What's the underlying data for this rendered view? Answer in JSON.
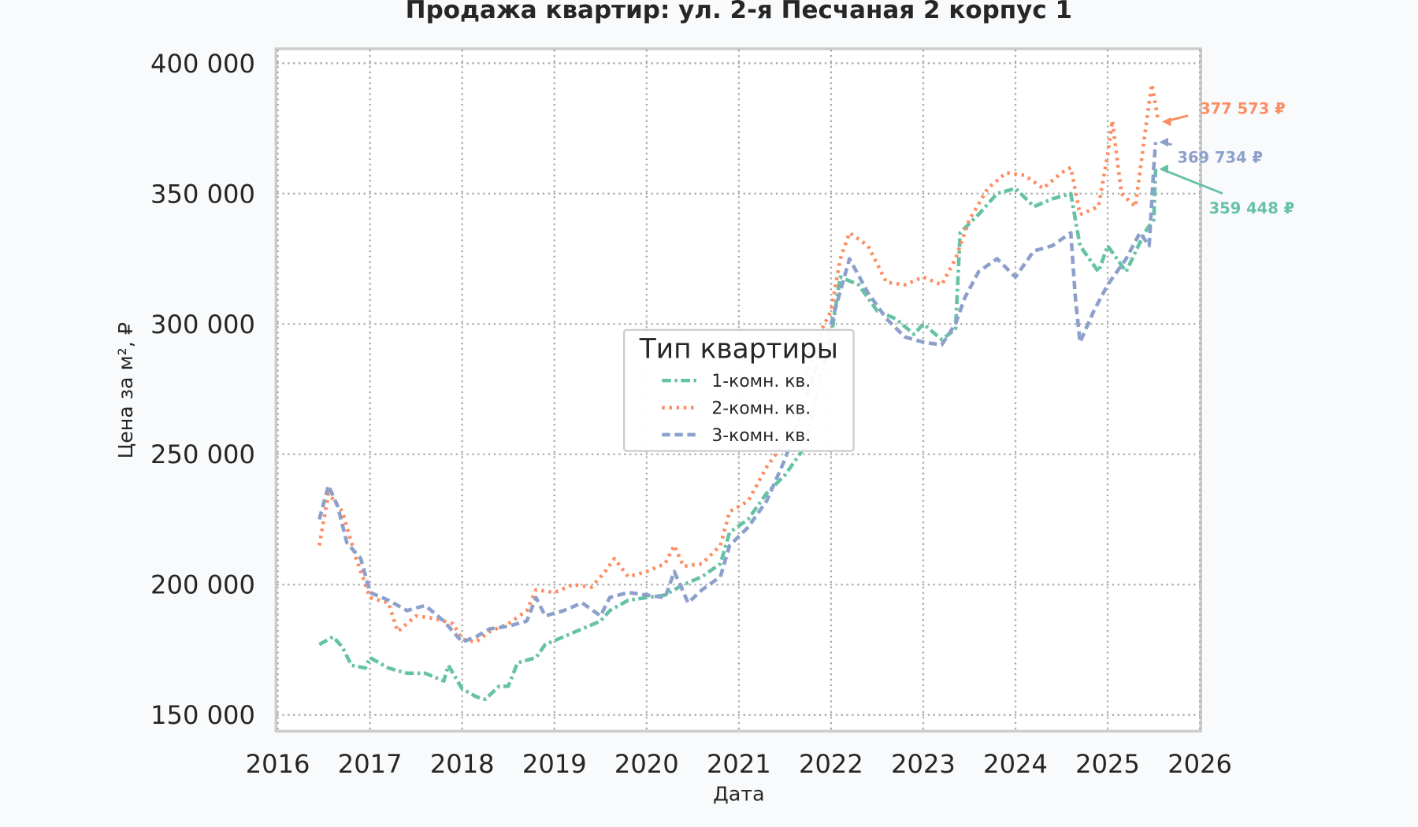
{
  "chart_data": {
    "type": "line",
    "title": "Продажа квартир: ул. 2-я Песчаная 2 корпус 1",
    "xlabel": "Дата",
    "ylabel": "Цена за м², ₽",
    "xlim": [
      2016,
      2026
    ],
    "ylim": [
      145000,
      402000
    ],
    "x_ticks": [
      "2016",
      "2017",
      "2018",
      "2019",
      "2020",
      "2021",
      "2022",
      "2023",
      "2024",
      "2025",
      "2026"
    ],
    "y_ticks": [
      {
        "value": 150000,
        "label": "150 000"
      },
      {
        "value": 200000,
        "label": "200 000"
      },
      {
        "value": 250000,
        "label": "250 000"
      },
      {
        "value": 300000,
        "label": "300 000"
      },
      {
        "value": 350000,
        "label": "350 000"
      },
      {
        "value": 400000,
        "label": "400 000"
      }
    ],
    "grid": true,
    "legend": {
      "title": "Тип квартиры",
      "placement": "center"
    },
    "series": [
      {
        "name": "1-комн. кв.",
        "color": "#66c2a5",
        "style": "dash-dot",
        "last_label": "359 448 ₽",
        "x": [
          2016.45,
          2016.6,
          2016.7,
          2016.8,
          2016.95,
          2017.0,
          2017.2,
          2017.4,
          2017.6,
          2017.8,
          2017.85,
          2018.0,
          2018.15,
          2018.25,
          2018.4,
          2018.5,
          2018.6,
          2018.8,
          2018.9,
          2019.1,
          2019.3,
          2019.5,
          2019.6,
          2019.8,
          2020.0,
          2020.2,
          2020.4,
          2020.6,
          2020.8,
          2020.9,
          2021.1,
          2021.3,
          2021.5,
          2021.7,
          2022.0,
          2022.1,
          2022.3,
          2022.5,
          2022.7,
          2022.9,
          2023.0,
          2023.2,
          2023.35,
          2023.4,
          2023.6,
          2023.8,
          2024.0,
          2024.2,
          2024.4,
          2024.6,
          2024.7,
          2024.9,
          2025.0,
          2025.2,
          2025.4,
          2025.5,
          2025.52
        ],
        "y": [
          177000,
          180000,
          176000,
          169000,
          168000,
          172000,
          168000,
          166000,
          166000,
          163000,
          169000,
          160000,
          157000,
          156000,
          161000,
          161000,
          170000,
          172000,
          177000,
          180000,
          183000,
          186000,
          190000,
          194000,
          195000,
          196000,
          200000,
          203000,
          208000,
          220000,
          225000,
          235000,
          242000,
          252000,
          295000,
          318000,
          315000,
          305000,
          302000,
          296000,
          300000,
          294000,
          298000,
          335000,
          342000,
          350000,
          352000,
          345000,
          348000,
          350000,
          330000,
          320000,
          330000,
          320000,
          335000,
          340000,
          359448
        ]
      },
      {
        "name": "2-комн. кв.",
        "color": "#fc8d62",
        "style": "dotted",
        "last_label": "377 573 ₽",
        "x": [
          2016.45,
          2016.55,
          2016.7,
          2016.85,
          2017.0,
          2017.2,
          2017.3,
          2017.5,
          2017.7,
          2017.9,
          2018.0,
          2018.15,
          2018.3,
          2018.5,
          2018.7,
          2018.8,
          2019.0,
          2019.2,
          2019.4,
          2019.55,
          2019.65,
          2019.8,
          2020.0,
          2020.2,
          2020.3,
          2020.4,
          2020.6,
          2020.8,
          2020.9,
          2021.1,
          2021.3,
          2021.5,
          2021.9,
          2022.0,
          2022.1,
          2022.2,
          2022.4,
          2022.6,
          2022.8,
          2023.0,
          2023.2,
          2023.35,
          2023.5,
          2023.7,
          2023.9,
          2024.1,
          2024.3,
          2024.5,
          2024.6,
          2024.7,
          2024.9,
          2025.0,
          2025.05,
          2025.15,
          2025.3,
          2025.45,
          2025.48,
          2025.55
        ],
        "y": [
          215000,
          235000,
          228000,
          210000,
          195000,
          193000,
          182000,
          188000,
          187000,
          185000,
          179000,
          178000,
          182000,
          185000,
          190000,
          198000,
          197000,
          200000,
          199000,
          205000,
          210000,
          203000,
          205000,
          208000,
          215000,
          207000,
          208000,
          215000,
          228000,
          232000,
          245000,
          255000,
          298000,
          305000,
          325000,
          335000,
          330000,
          316000,
          315000,
          318000,
          315000,
          325000,
          340000,
          352000,
          358000,
          357000,
          352000,
          358000,
          360000,
          342000,
          345000,
          365000,
          378000,
          350000,
          345000,
          385000,
          392000,
          377573
        ]
      },
      {
        "name": "3-комн. кв.",
        "color": "#8da0cb",
        "style": "dashed",
        "last_label": "369 734 ₽",
        "x": [
          2016.45,
          2016.55,
          2016.65,
          2016.75,
          2016.9,
          2017.0,
          2017.2,
          2017.4,
          2017.6,
          2017.8,
          2018.0,
          2018.15,
          2018.3,
          2018.5,
          2018.7,
          2018.8,
          2018.9,
          2019.1,
          2019.3,
          2019.5,
          2019.6,
          2019.8,
          2020.0,
          2020.2,
          2020.3,
          2020.45,
          2020.6,
          2020.8,
          2020.9,
          2021.1,
          2021.3,
          2021.5,
          2022.0,
          2022.2,
          2022.4,
          2022.6,
          2022.8,
          2023.0,
          2023.2,
          2023.35,
          2023.45,
          2023.6,
          2023.8,
          2024.0,
          2024.2,
          2024.4,
          2024.6,
          2024.65,
          2024.7,
          2024.85,
          2025.0,
          2025.2,
          2025.35,
          2025.45,
          2025.5,
          2025.52
        ],
        "y": [
          225000,
          238000,
          230000,
          216000,
          210000,
          197000,
          194000,
          190000,
          192000,
          186000,
          178000,
          180000,
          183000,
          184000,
          186000,
          195000,
          188000,
          190000,
          193000,
          188000,
          195000,
          197000,
          196000,
          195000,
          205000,
          193000,
          198000,
          203000,
          215000,
          222000,
          232000,
          248000,
          300000,
          325000,
          312000,
          302000,
          295000,
          293000,
          292000,
          300000,
          310000,
          320000,
          325000,
          318000,
          328000,
          330000,
          335000,
          310000,
          293000,
          305000,
          315000,
          325000,
          335000,
          330000,
          360000,
          369734
        ]
      }
    ]
  }
}
